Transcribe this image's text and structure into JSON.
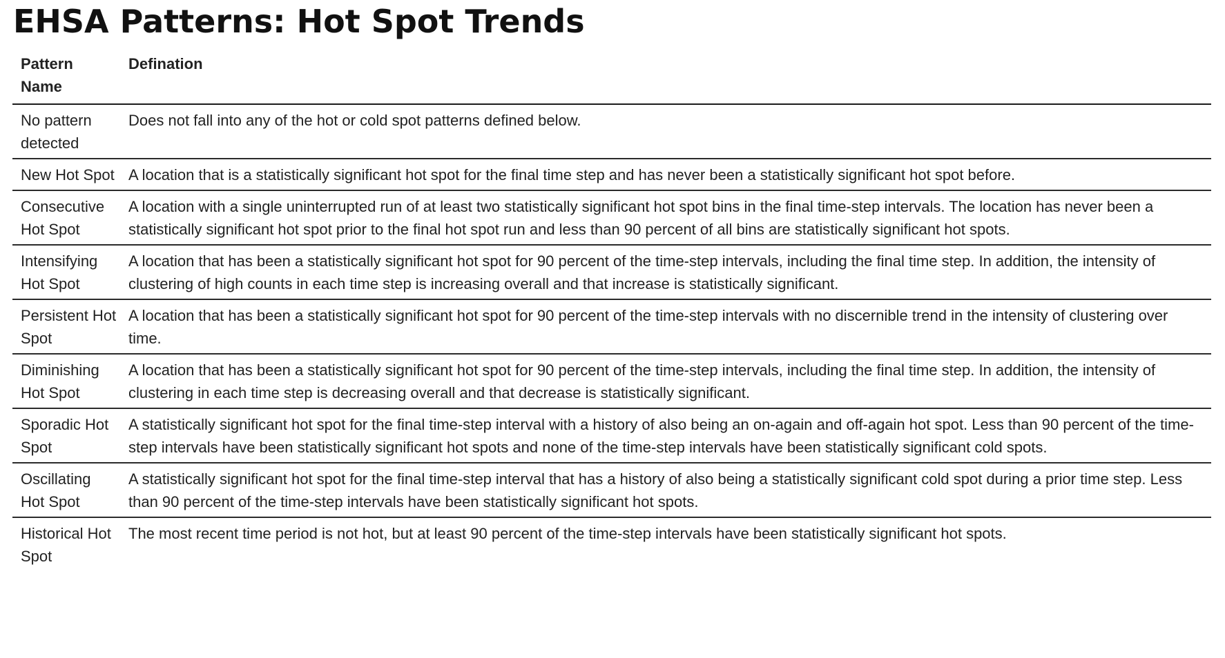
{
  "page_title": "EHSA Patterns: Hot Spot Trends",
  "table": {
    "headers": [
      "Pattern Name",
      "Defination"
    ],
    "rows": [
      {
        "name": "No pattern detected",
        "definition": "Does not fall into any of the hot or cold spot patterns defined below."
      },
      {
        "name": "New Hot Spot",
        "definition": "A location that is a statistically significant hot spot for the final time step and has never been a statistically significant hot spot before."
      },
      {
        "name": "Consecutive Hot Spot",
        "definition": "A location with a single uninterrupted run of at least two statistically significant hot spot bins in the final time-step intervals. The location has never been a statistically significant hot spot prior to the final hot spot run and less than 90 percent of all bins are statistically significant hot spots."
      },
      {
        "name": "Intensifying Hot Spot",
        "definition": "A location that has been a statistically significant hot spot for 90 percent of the time-step intervals, including the final time step. In addition, the intensity of clustering of high counts in each time step is increasing overall and that increase is statistically significant."
      },
      {
        "name": "Persistent Hot Spot",
        "definition": "A location that has been a statistically significant hot spot for 90 percent of the time-step intervals with no discernible trend in the intensity of clustering over time."
      },
      {
        "name": "Diminishing Hot Spot",
        "definition": "A location that has been a statistically significant hot spot for 90 percent of the time-step intervals, including the final time step. In addition, the intensity of clustering in each time step is decreasing overall and that decrease is statistically significant."
      },
      {
        "name": "Sporadic Hot Spot",
        "definition": "A statistically significant hot spot for the final time-step interval with a history of also being an on-again and off-again hot spot. Less than 90 percent of the time-step intervals have been statistically significant hot spots and none of the time-step intervals have been statistically significant cold spots."
      },
      {
        "name": "Oscillating Hot Spot",
        "definition": "A statistically significant hot spot for the final time-step interval that has a history of also being a statistically significant cold spot during a prior time step. Less than 90 percent of the time-step intervals have been statistically significant hot spots."
      },
      {
        "name": "Historical Hot Spot",
        "definition": "The most recent time period is not hot, but at least 90 percent of the time-step intervals have been statistically significant hot spots."
      }
    ]
  }
}
